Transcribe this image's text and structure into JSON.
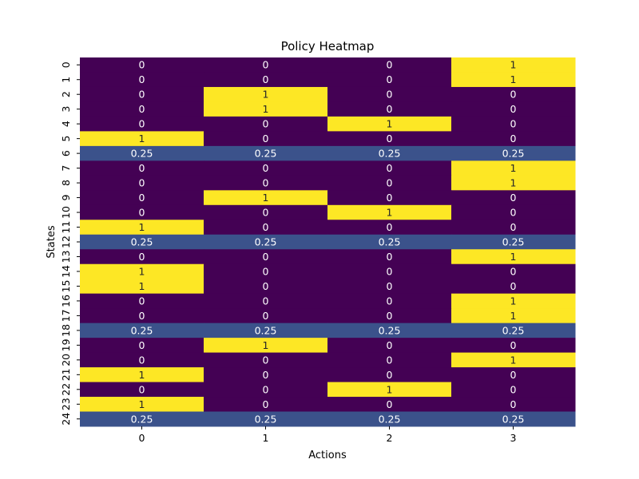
{
  "chart_data": {
    "type": "heatmap",
    "title": "Policy Heatmap",
    "xlabel": "Actions",
    "ylabel": "States",
    "x_categories": [
      "0",
      "1",
      "2",
      "3"
    ],
    "y_categories": [
      "0",
      "1",
      "2",
      "3",
      "4",
      "5",
      "6",
      "7",
      "8",
      "9",
      "10",
      "11",
      "12",
      "13",
      "14",
      "15",
      "16",
      "17",
      "18",
      "19",
      "20",
      "21",
      "22",
      "23",
      "24"
    ],
    "values": [
      [
        0,
        0,
        0,
        1
      ],
      [
        0,
        0,
        0,
        1
      ],
      [
        0,
        1,
        0,
        0
      ],
      [
        0,
        1,
        0,
        0
      ],
      [
        0,
        0,
        1,
        0
      ],
      [
        1,
        0,
        0,
        0
      ],
      [
        0.25,
        0.25,
        0.25,
        0.25
      ],
      [
        0,
        0,
        0,
        1
      ],
      [
        0,
        0,
        0,
        1
      ],
      [
        0,
        1,
        0,
        0
      ],
      [
        0,
        0,
        1,
        0
      ],
      [
        1,
        0,
        0,
        0
      ],
      [
        0.25,
        0.25,
        0.25,
        0.25
      ],
      [
        0,
        0,
        0,
        1
      ],
      [
        1,
        0,
        0,
        0
      ],
      [
        1,
        0,
        0,
        0
      ],
      [
        0,
        0,
        0,
        1
      ],
      [
        0,
        0,
        0,
        1
      ],
      [
        0.25,
        0.25,
        0.25,
        0.25
      ],
      [
        0,
        1,
        0,
        0
      ],
      [
        0,
        0,
        0,
        1
      ],
      [
        1,
        0,
        0,
        0
      ],
      [
        0,
        0,
        1,
        0
      ],
      [
        1,
        0,
        0,
        0
      ],
      [
        0.25,
        0.25,
        0.25,
        0.25
      ]
    ],
    "colormap": "viridis",
    "colors": {
      "0": "#440154",
      "0.25": "#3b528b",
      "1": "#fde725"
    },
    "annotated": true,
    "colorbar": false,
    "grid": false
  }
}
